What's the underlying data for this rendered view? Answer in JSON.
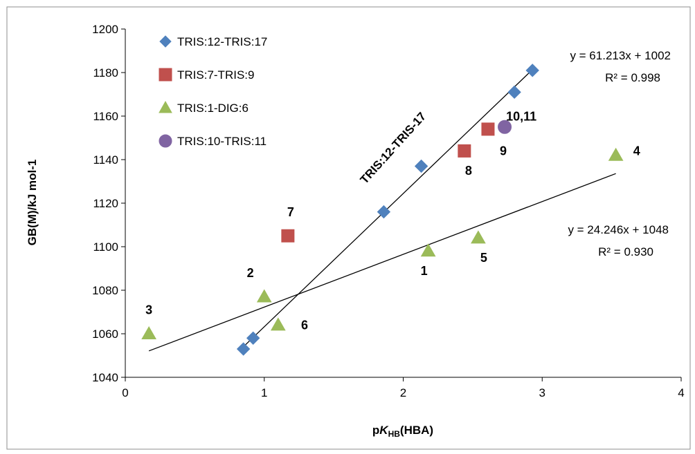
{
  "chart_data": {
    "type": "scatter",
    "xlabel_prefix": "p",
    "xlabel_italic": "K",
    "xlabel_sub": "HB",
    "xlabel_suffix": "(HBA)",
    "ylabel": "GB(M)/kJ mol-1",
    "xlim": [
      0,
      4
    ],
    "ylim": [
      1040,
      1200
    ],
    "x_ticks": [
      0,
      1,
      2,
      3,
      4
    ],
    "y_ticks": [
      1040,
      1060,
      1080,
      1100,
      1120,
      1140,
      1160,
      1180,
      1200
    ],
    "grid": false,
    "legend_position": "top-left",
    "series": [
      {
        "name": "TRIS:12-TRIS:17",
        "marker": "diamond",
        "color": "#4f81bd",
        "points": [
          [
            0.85,
            1053
          ],
          [
            0.92,
            1058
          ],
          [
            1.86,
            1116
          ],
          [
            2.13,
            1137
          ],
          [
            2.8,
            1171
          ],
          [
            2.93,
            1181
          ]
        ]
      },
      {
        "name": "TRIS:7-TRIS:9",
        "marker": "square",
        "color": "#c0504d",
        "points": [
          [
            1.17,
            1105
          ],
          [
            2.44,
            1144
          ],
          [
            2.61,
            1154
          ]
        ]
      },
      {
        "name": "TRIS:1-DIG:6",
        "marker": "triangle",
        "color": "#9bbb59",
        "points": [
          [
            0.17,
            1060
          ],
          [
            1.0,
            1077
          ],
          [
            1.1,
            1064
          ],
          [
            2.18,
            1098
          ],
          [
            2.54,
            1104
          ],
          [
            3.53,
            1142
          ]
        ]
      },
      {
        "name": "TRIS:10-TRIS:11",
        "marker": "circle",
        "color": "#8064a2",
        "points": [
          [
            2.73,
            1155
          ]
        ]
      }
    ],
    "trendlines": [
      {
        "label": "TRIS:12-TRIS-17",
        "equation": "y = 61.213x + 1002",
        "r2": "R² = 0.998",
        "slope": 61.213,
        "intercept": 1002,
        "x_range": [
          0.85,
          2.93
        ]
      },
      {
        "equation": "y = 24.246x + 1048",
        "r2": "R² = 0.930",
        "slope": 24.246,
        "intercept": 1048,
        "x_range": [
          0.17,
          3.53
        ]
      }
    ],
    "point_labels": [
      {
        "text": "3",
        "x": 0.17,
        "y": 1069
      },
      {
        "text": "2",
        "x": 0.9,
        "y": 1086
      },
      {
        "text": "6",
        "x": 1.29,
        "y": 1062
      },
      {
        "text": "7",
        "x": 1.19,
        "y": 1114
      },
      {
        "text": "1",
        "x": 2.15,
        "y": 1087
      },
      {
        "text": "5",
        "x": 2.58,
        "y": 1093
      },
      {
        "text": "8",
        "x": 2.47,
        "y": 1133
      },
      {
        "text": "9",
        "x": 2.72,
        "y": 1142
      },
      {
        "text": "10,11",
        "x": 2.85,
        "y": 1158
      },
      {
        "text": "4",
        "x": 3.68,
        "y": 1142
      }
    ]
  }
}
